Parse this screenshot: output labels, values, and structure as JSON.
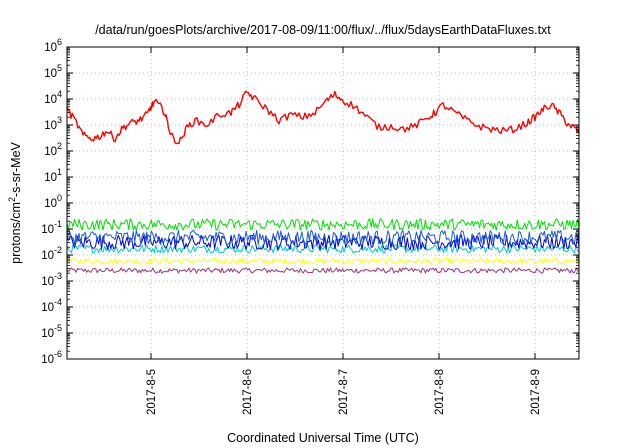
{
  "chart_data": {
    "type": "line",
    "title": "/data/run/goesPlots/archive/2017-08-09/11:00/flux/../flux/5daysEarthDataFluxes.txt",
    "xlabel": "Coordinated Universal Time (UTC)",
    "ylabel_main": "protons/cm",
    "ylabel_sup": "2",
    "ylabel_rest": "-s-sr-MeV",
    "x_ticks": [
      "2017-8-5",
      "2017-8-6",
      "2017-8-7",
      "2017-8-8",
      "2017-8-9"
    ],
    "x_range": [
      "2017-08-04T03:00",
      "2017-08-09T11:00"
    ],
    "y_scale": "log",
    "y_range": [
      1e-06,
      1000000.0
    ],
    "y_ticks": [
      {
        "base": "10",
        "exp": "-6"
      },
      {
        "base": "10",
        "exp": "-5"
      },
      {
        "base": "10",
        "exp": "-4"
      },
      {
        "base": "10",
        "exp": "-3"
      },
      {
        "base": "10",
        "exp": "-2"
      },
      {
        "base": "10",
        "exp": "-1"
      },
      {
        "base": "10",
        "exp": "0"
      },
      {
        "base": "10",
        "exp": "1"
      },
      {
        "base": "10",
        "exp": "2"
      },
      {
        "base": "10",
        "exp": "3"
      },
      {
        "base": "10",
        "exp": "4"
      },
      {
        "base": "10",
        "exp": "5"
      },
      {
        "base": "10",
        "exp": "6"
      }
    ],
    "grid": true,
    "series": [
      {
        "color": "#ff0000",
        "x": [
          "2017-08-04T03:00",
          "2017-08-04T05:00",
          "2017-08-04T07:00",
          "2017-08-04T09:00",
          "2017-08-04T11:00",
          "2017-08-04T13:00",
          "2017-08-04T15:00",
          "2017-08-04T17:00",
          "2017-08-04T19:00",
          "2017-08-04T21:00",
          "2017-08-04T23:00",
          "2017-08-05T00:00",
          "2017-08-05T01:00",
          "2017-08-05T03:00",
          "2017-08-05T04:00",
          "2017-08-05T05:00",
          "2017-08-05T07:00",
          "2017-08-05T09:00",
          "2017-08-05T11:00",
          "2017-08-05T14:00",
          "2017-08-05T17:00",
          "2017-08-05T20:00",
          "2017-08-05T22:00",
          "2017-08-06T00:00",
          "2017-08-06T02:00",
          "2017-08-06T05:00",
          "2017-08-06T08:00",
          "2017-08-06T11:00",
          "2017-08-06T14:00",
          "2017-08-06T17:00",
          "2017-08-06T20:00",
          "2017-08-06T22:00",
          "2017-08-07T00:00",
          "2017-08-07T03:00",
          "2017-08-07T06:00",
          "2017-08-07T09:00",
          "2017-08-07T12:00",
          "2017-08-07T15:00",
          "2017-08-07T18:00",
          "2017-08-07T21:00",
          "2017-08-07T23:00",
          "2017-08-08T01:00",
          "2017-08-08T04:00",
          "2017-08-08T07:00",
          "2017-08-08T10:00",
          "2017-08-08T13:00",
          "2017-08-08T16:00",
          "2017-08-08T19:00",
          "2017-08-08T22:00",
          "2017-08-09T00:00",
          "2017-08-09T02:00",
          "2017-08-09T04:00",
          "2017-08-09T06:00",
          "2017-08-09T08:00",
          "2017-08-09T10:00",
          "2017-08-09T11:00"
        ],
        "y": [
          4000,
          1500,
          400,
          300,
          350,
          600,
          300,
          800,
          1200,
          1500,
          2500,
          5000,
          8000,
          4000,
          1500,
          400,
          200,
          800,
          1500,
          1000,
          2500,
          3000,
          6000,
          18000,
          10000,
          4000,
          1500,
          2500,
          2000,
          3000,
          9000,
          15000,
          9000,
          5000,
          2000,
          800,
          900,
          700,
          900,
          1800,
          3000,
          6000,
          3000,
          1500,
          900,
          700,
          600,
          700,
          1200,
          2000,
          4000,
          6000,
          3000,
          1200,
          700,
          500
        ]
      },
      {
        "color": "#00e000",
        "x": [
          "2017-08-04T03:00",
          "2017-08-09T11:00"
        ],
        "y": [
          0.14,
          0.14
        ],
        "noise": [
          0.09,
          0.25
        ]
      },
      {
        "color": "#1a5ad8",
        "x": [
          "2017-08-04T03:00",
          "2017-08-09T11:00"
        ],
        "y": [
          0.05,
          0.05
        ],
        "noise": [
          0.025,
          0.09
        ]
      },
      {
        "color": "#0000dd",
        "x": [
          "2017-08-04T03:00",
          "2017-08-09T11:00"
        ],
        "y": [
          0.03,
          0.03
        ],
        "noise": [
          0.016,
          0.06
        ]
      },
      {
        "color": "#00c8c8",
        "x": [
          "2017-08-04T03:00",
          "2017-08-09T11:00"
        ],
        "y": [
          0.018,
          0.018
        ],
        "noise": [
          0.012,
          0.025
        ]
      },
      {
        "color": "#ffff00",
        "x": [
          "2017-08-04T03:00",
          "2017-08-09T11:00"
        ],
        "y": [
          0.006,
          0.006
        ],
        "noise": [
          0.0045,
          0.0075
        ]
      },
      {
        "color": "#a0307a",
        "x": [
          "2017-08-04T03:00",
          "2017-08-09T11:00"
        ],
        "y": [
          0.0025,
          0.0025
        ],
        "noise": [
          0.002,
          0.0032
        ]
      }
    ]
  }
}
